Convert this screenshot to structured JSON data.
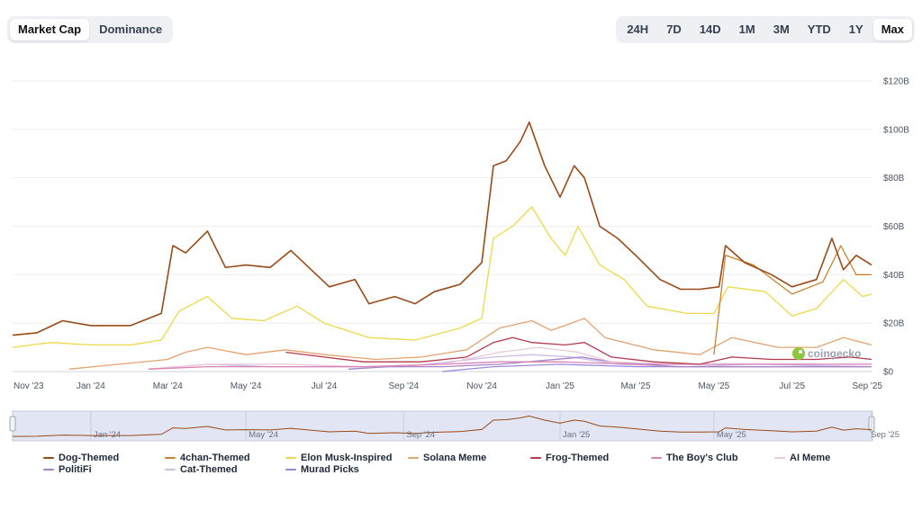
{
  "metric_tabs": [
    {
      "label": "Market Cap",
      "active": true
    },
    {
      "label": "Dominance",
      "active": false
    }
  ],
  "range_tabs": [
    {
      "label": "24H",
      "active": false
    },
    {
      "label": "7D",
      "active": false
    },
    {
      "label": "14D",
      "active": false
    },
    {
      "label": "1M",
      "active": false
    },
    {
      "label": "3M",
      "active": false
    },
    {
      "label": "YTD",
      "active": false
    },
    {
      "label": "1Y",
      "active": false
    },
    {
      "label": "Max",
      "active": true
    }
  ],
  "watermark": "coingecko",
  "chart_data": {
    "type": "line",
    "title": "",
    "xlabel": "",
    "ylabel": "",
    "x_range": [
      "2023-11-01",
      "2025-09-01"
    ],
    "ylim": [
      0,
      120
    ],
    "y_unit": "B USD",
    "y_ticks": [
      "$0",
      "$20B",
      "$40B",
      "$60B",
      "$80B",
      "$100B",
      "$120B"
    ],
    "x_ticks": [
      "Nov '23",
      "Jan '24",
      "Mar '24",
      "May '24",
      "Jul '24",
      "Sep '24",
      "Nov '24",
      "Jan '25",
      "Mar '25",
      "May '25",
      "Jul '25",
      "Sep '25"
    ],
    "navigator_ticks": [
      "Jan '24",
      "May '24",
      "Sep '24",
      "Jan '25",
      "May '25",
      "Sep '25"
    ],
    "grid": true,
    "legend_position": "bottom",
    "series": [
      {
        "name": "Dog-Themed",
        "color": "#9a4a17",
        "points": [
          [
            "2023-11-01",
            15
          ],
          [
            "2023-11-20",
            16
          ],
          [
            "2023-12-10",
            21
          ],
          [
            "2024-01-01",
            19
          ],
          [
            "2024-02-01",
            19
          ],
          [
            "2024-02-25",
            24
          ],
          [
            "2024-03-05",
            52
          ],
          [
            "2024-03-15",
            49
          ],
          [
            "2024-04-01",
            58
          ],
          [
            "2024-04-15",
            43
          ],
          [
            "2024-05-01",
            44
          ],
          [
            "2024-05-20",
            43
          ],
          [
            "2024-06-05",
            50
          ],
          [
            "2024-06-25",
            40
          ],
          [
            "2024-07-05",
            35
          ],
          [
            "2024-07-25",
            38
          ],
          [
            "2024-08-05",
            28
          ],
          [
            "2024-08-25",
            31
          ],
          [
            "2024-09-10",
            28
          ],
          [
            "2024-09-25",
            33
          ],
          [
            "2024-10-15",
            36
          ],
          [
            "2024-11-01",
            45
          ],
          [
            "2024-11-10",
            85
          ],
          [
            "2024-11-20",
            87
          ],
          [
            "2024-12-01",
            95
          ],
          [
            "2024-12-08",
            103
          ],
          [
            "2024-12-20",
            85
          ],
          [
            "2025-01-01",
            72
          ],
          [
            "2025-01-12",
            85
          ],
          [
            "2025-01-20",
            80
          ],
          [
            "2025-02-01",
            60
          ],
          [
            "2025-02-15",
            55
          ],
          [
            "2025-03-01",
            48
          ],
          [
            "2025-03-20",
            38
          ],
          [
            "2025-04-05",
            34
          ],
          [
            "2025-04-20",
            34
          ],
          [
            "2025-05-05",
            35
          ],
          [
            "2025-05-10",
            52
          ],
          [
            "2025-05-25",
            45
          ],
          [
            "2025-06-15",
            40
          ],
          [
            "2025-07-01",
            35
          ],
          [
            "2025-07-20",
            38
          ],
          [
            "2025-08-01",
            55
          ],
          [
            "2025-08-10",
            42
          ],
          [
            "2025-08-20",
            48
          ],
          [
            "2025-09-01",
            44
          ]
        ]
      },
      {
        "name": "4chan-Themed",
        "color": "#c8842e",
        "points": [
          [
            "2025-05-01",
            7
          ],
          [
            "2025-05-10",
            48
          ],
          [
            "2025-06-01",
            44
          ],
          [
            "2025-07-01",
            32
          ],
          [
            "2025-07-25",
            37
          ],
          [
            "2025-08-08",
            52
          ],
          [
            "2025-08-20",
            40
          ],
          [
            "2025-09-01",
            40
          ]
        ]
      },
      {
        "name": "Elon Musk-Inspired",
        "color": "#eed84a",
        "points": [
          [
            "2023-11-01",
            10
          ],
          [
            "2023-12-01",
            12
          ],
          [
            "2024-01-01",
            11
          ],
          [
            "2024-02-01",
            11
          ],
          [
            "2024-02-25",
            13
          ],
          [
            "2024-03-10",
            25
          ],
          [
            "2024-04-01",
            31
          ],
          [
            "2024-04-20",
            22
          ],
          [
            "2024-05-15",
            21
          ],
          [
            "2024-06-10",
            27
          ],
          [
            "2024-07-01",
            20
          ],
          [
            "2024-08-05",
            14
          ],
          [
            "2024-09-10",
            13
          ],
          [
            "2024-10-15",
            18
          ],
          [
            "2024-11-01",
            22
          ],
          [
            "2024-11-10",
            55
          ],
          [
            "2024-11-25",
            60
          ],
          [
            "2024-12-10",
            68
          ],
          [
            "2024-12-25",
            55
          ],
          [
            "2025-01-05",
            48
          ],
          [
            "2025-01-15",
            60
          ],
          [
            "2025-02-01",
            44
          ],
          [
            "2025-02-20",
            38
          ],
          [
            "2025-03-10",
            27
          ],
          [
            "2025-04-10",
            24
          ],
          [
            "2025-05-01",
            24
          ],
          [
            "2025-05-12",
            35
          ],
          [
            "2025-06-10",
            33
          ],
          [
            "2025-07-01",
            23
          ],
          [
            "2025-07-20",
            26
          ],
          [
            "2025-08-10",
            38
          ],
          [
            "2025-08-25",
            31
          ],
          [
            "2025-09-01",
            32
          ]
        ]
      },
      {
        "name": "Solana Meme",
        "color": "#e3a36f",
        "points": [
          [
            "2023-12-15",
            1
          ],
          [
            "2024-03-01",
            5
          ],
          [
            "2024-03-15",
            8
          ],
          [
            "2024-04-01",
            10
          ],
          [
            "2024-05-01",
            7
          ],
          [
            "2024-06-01",
            9
          ],
          [
            "2024-07-01",
            7
          ],
          [
            "2024-08-10",
            5
          ],
          [
            "2024-09-15",
            6
          ],
          [
            "2024-10-20",
            9
          ],
          [
            "2024-11-15",
            18
          ],
          [
            "2024-12-10",
            21
          ],
          [
            "2024-12-25",
            17
          ],
          [
            "2025-01-10",
            20
          ],
          [
            "2025-01-20",
            22
          ],
          [
            "2025-02-05",
            14
          ],
          [
            "2025-03-15",
            9
          ],
          [
            "2025-04-20",
            7
          ],
          [
            "2025-05-15",
            14
          ],
          [
            "2025-06-20",
            10
          ],
          [
            "2025-07-20",
            10
          ],
          [
            "2025-08-10",
            14
          ],
          [
            "2025-09-01",
            11
          ]
        ]
      },
      {
        "name": "Frog-Themed",
        "color": "#b13a4e",
        "points": [
          [
            "2024-06-01",
            8
          ],
          [
            "2024-07-01",
            6
          ],
          [
            "2024-08-01",
            4
          ],
          [
            "2024-09-15",
            4
          ],
          [
            "2024-10-20",
            6
          ],
          [
            "2024-11-10",
            12
          ],
          [
            "2024-11-25",
            14
          ],
          [
            "2024-12-10",
            12
          ],
          [
            "2025-01-05",
            11
          ],
          [
            "2025-01-20",
            12
          ],
          [
            "2025-02-10",
            6
          ],
          [
            "2025-03-15",
            4
          ],
          [
            "2025-04-20",
            3
          ],
          [
            "2025-05-15",
            6
          ],
          [
            "2025-06-15",
            5
          ],
          [
            "2025-07-20",
            5
          ],
          [
            "2025-08-15",
            6
          ],
          [
            "2025-09-01",
            5
          ]
        ]
      },
      {
        "name": "The Boy's Club",
        "color": "#d982b5",
        "points": [
          [
            "2024-02-15",
            1
          ],
          [
            "2024-04-01",
            2
          ],
          [
            "2024-06-01",
            2
          ],
          [
            "2024-08-01",
            2
          ],
          [
            "2024-10-01",
            3
          ],
          [
            "2024-11-15",
            4
          ],
          [
            "2025-01-01",
            4
          ],
          [
            "2025-03-01",
            3
          ],
          [
            "2025-06-01",
            3
          ],
          [
            "2025-09-01",
            3
          ]
        ]
      },
      {
        "name": "AI Meme",
        "color": "#ecc8d8",
        "points": [
          [
            "2024-02-15",
            1
          ],
          [
            "2024-04-01",
            3
          ],
          [
            "2024-06-01",
            3
          ],
          [
            "2024-08-01",
            2
          ],
          [
            "2024-10-01",
            3
          ],
          [
            "2024-11-15",
            8
          ],
          [
            "2024-12-15",
            10
          ],
          [
            "2025-01-15",
            8
          ],
          [
            "2025-02-10",
            4
          ],
          [
            "2025-04-01",
            3
          ],
          [
            "2025-06-01",
            3
          ],
          [
            "2025-09-01",
            3
          ]
        ]
      },
      {
        "name": "PolitiFi",
        "color": "#a882c4",
        "points": [
          [
            "2024-07-20",
            1
          ],
          [
            "2024-08-20",
            2
          ],
          [
            "2024-10-01",
            2
          ],
          [
            "2024-11-15",
            3
          ],
          [
            "2025-01-18",
            6
          ],
          [
            "2025-02-10",
            4
          ],
          [
            "2025-04-01",
            2
          ],
          [
            "2025-06-01",
            2
          ],
          [
            "2025-09-01",
            2
          ]
        ]
      },
      {
        "name": "Cat-Themed",
        "color": "#cdbce6",
        "points": [
          [
            "2024-02-15",
            1
          ],
          [
            "2024-04-01",
            3
          ],
          [
            "2024-05-20",
            2
          ],
          [
            "2024-07-01",
            2
          ],
          [
            "2024-09-01",
            2
          ],
          [
            "2024-11-10",
            6
          ],
          [
            "2024-12-10",
            7
          ],
          [
            "2025-01-10",
            6
          ],
          [
            "2025-02-15",
            3
          ],
          [
            "2025-04-10",
            2
          ],
          [
            "2025-06-01",
            3
          ],
          [
            "2025-09-01",
            2
          ]
        ]
      },
      {
        "name": "Murad Picks",
        "color": "#9a88e0",
        "points": [
          [
            "2024-10-01",
            0
          ],
          [
            "2024-11-10",
            2
          ],
          [
            "2025-01-01",
            3
          ],
          [
            "2025-03-01",
            2
          ],
          [
            "2025-06-01",
            2
          ],
          [
            "2025-09-01",
            2
          ]
        ]
      }
    ]
  }
}
